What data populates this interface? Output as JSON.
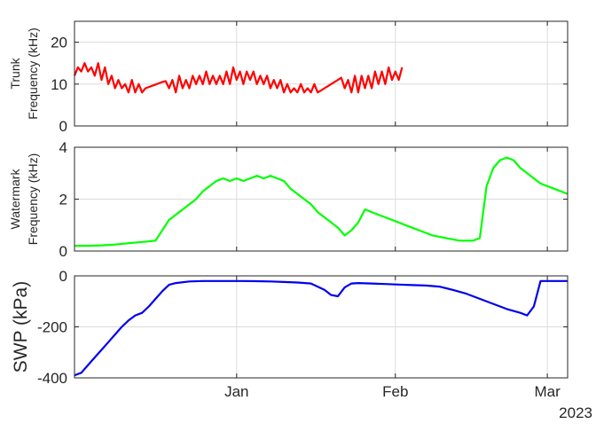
{
  "chart_data": [
    {
      "type": "line",
      "ylabel_lines": [
        "Trunk",
        "Frequency (kHz)"
      ],
      "ylim": [
        0,
        25
      ],
      "yticks": [
        0,
        10,
        20
      ],
      "ytick_labels": [
        "0",
        "10",
        "20"
      ],
      "grid": true,
      "series": [
        {
          "color": "#ff0000",
          "x": [
            0,
            1,
            2,
            3,
            4,
            5,
            6,
            7,
            8,
            9,
            10,
            11,
            12,
            13,
            14,
            15,
            16,
            17,
            18,
            19,
            20,
            21,
            22,
            23,
            24,
            25,
            26,
            27,
            28,
            29,
            30,
            31,
            32,
            33,
            34,
            35,
            36,
            37,
            38,
            39,
            40,
            41,
            42,
            43,
            44,
            45,
            46,
            47,
            48,
            49,
            50,
            51,
            52,
            53,
            54,
            55,
            56,
            57,
            58,
            59,
            60,
            61,
            62,
            63,
            64,
            65,
            66,
            67,
            68,
            69,
            70,
            71,
            72,
            73,
            74,
            75,
            76,
            77,
            78,
            79,
            80,
            81,
            82,
            83,
            84,
            85,
            86,
            87,
            88,
            89,
            90,
            91,
            92,
            93,
            94,
            95,
            96,
            97
          ],
          "y": [
            12,
            14,
            13,
            15,
            13,
            14,
            12,
            15,
            11,
            14,
            10,
            12,
            9,
            11,
            9,
            10,
            8,
            11,
            8,
            10,
            8,
            9,
            9.3,
            9.6,
            9.9,
            10.2,
            10.5,
            10.7,
            9,
            11,
            8,
            12,
            9,
            11,
            9,
            12,
            10,
            12,
            10,
            13,
            10,
            12,
            10,
            12,
            10,
            13,
            10,
            14,
            11,
            13,
            10,
            13,
            11,
            13,
            10,
            12,
            10,
            12,
            9,
            11,
            9,
            11,
            8,
            10,
            8,
            9,
            8,
            10,
            8,
            9,
            8,
            10,
            8,
            8.5,
            9,
            9.5,
            10,
            10.5,
            11,
            11.5,
            9,
            11,
            8,
            12,
            8,
            12,
            9,
            12,
            9,
            13,
            10,
            13,
            10,
            14,
            11,
            13,
            11,
            14
          ]
        }
      ]
    },
    {
      "type": "line",
      "ylabel_lines": [
        "Watermark",
        "Frequency (kHz)"
      ],
      "ylim": [
        0,
        4
      ],
      "yticks": [
        0,
        2,
        4
      ],
      "ytick_labels": [
        "0",
        "2",
        "4"
      ],
      "grid": true,
      "series": [
        {
          "color": "#00ff00",
          "x": [
            0,
            4,
            8,
            12,
            16,
            20,
            24,
            28,
            32,
            36,
            38,
            40,
            42,
            44,
            46,
            48,
            50,
            52,
            54,
            56,
            58,
            60,
            62,
            64,
            66,
            68,
            70,
            72,
            74,
            76,
            78,
            80,
            82,
            84,
            86,
            88,
            90,
            92,
            94,
            96,
            98,
            100,
            102,
            104,
            106,
            108,
            110,
            112,
            114,
            116,
            118,
            120,
            122,
            124,
            126,
            128,
            130,
            132,
            134,
            136,
            138,
            140,
            142,
            144,
            146
          ],
          "y": [
            0.2,
            0.2,
            0.22,
            0.25,
            0.3,
            0.35,
            0.4,
            1.2,
            1.6,
            2.0,
            2.3,
            2.5,
            2.7,
            2.8,
            2.7,
            2.8,
            2.7,
            2.8,
            2.9,
            2.8,
            2.9,
            2.8,
            2.7,
            2.4,
            2.2,
            2.0,
            1.8,
            1.5,
            1.3,
            1.1,
            0.9,
            0.6,
            0.8,
            1.1,
            1.6,
            1.5,
            1.4,
            1.3,
            1.2,
            1.1,
            1.0,
            0.9,
            0.8,
            0.7,
            0.6,
            0.55,
            0.5,
            0.45,
            0.4,
            0.4,
            0.4,
            0.5,
            2.5,
            3.2,
            3.5,
            3.6,
            3.5,
            3.2,
            3.0,
            2.8,
            2.6,
            2.5,
            2.4,
            2.3,
            2.2
          ]
        }
      ]
    },
    {
      "type": "line",
      "ylabel": "SWP (kPa)",
      "ylim": [
        -400,
        0
      ],
      "yticks": [
        -400,
        -200,
        0
      ],
      "ytick_labels": [
        "-400",
        "-200",
        "0"
      ],
      "grid": true,
      "xtick_labels": [
        "Jan",
        "Feb",
        "Mar"
      ],
      "xtick_positions": [
        48,
        95,
        140
      ],
      "xaxis_year": "2023",
      "series": [
        {
          "color": "#0000ee",
          "x": [
            0,
            2,
            4,
            6,
            8,
            10,
            12,
            14,
            16,
            18,
            20,
            22,
            24,
            26,
            28,
            30,
            34,
            38,
            42,
            46,
            50,
            54,
            58,
            62,
            66,
            70,
            74,
            76,
            78,
            80,
            82,
            84,
            88,
            92,
            96,
            100,
            104,
            108,
            112,
            116,
            120,
            124,
            128,
            132,
            134,
            136,
            138,
            140,
            142,
            144,
            146
          ],
          "y": [
            -390,
            -380,
            -350,
            -320,
            -290,
            -260,
            -230,
            -200,
            -175,
            -155,
            -145,
            -120,
            -90,
            -60,
            -35,
            -28,
            -22,
            -20,
            -20,
            -20,
            -20,
            -21,
            -22,
            -24,
            -26,
            -30,
            -55,
            -75,
            -80,
            -45,
            -30,
            -28,
            -30,
            -32,
            -34,
            -36,
            -38,
            -42,
            -55,
            -70,
            -90,
            -110,
            -130,
            -145,
            -155,
            -120,
            -20,
            -20,
            -20,
            -20,
            -20
          ]
        }
      ]
    }
  ]
}
